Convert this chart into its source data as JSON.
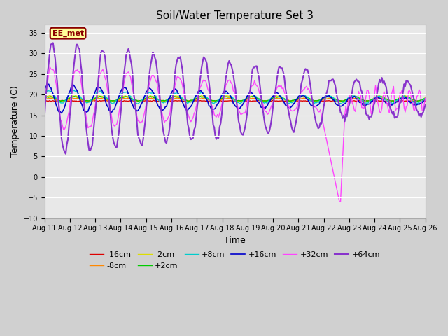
{
  "title": "Soil/Water Temperature Set 3",
  "xlabel": "Time",
  "ylabel": "Temperature (C)",
  "ylim": [
    -10,
    37
  ],
  "yticks": [
    -10,
    -5,
    0,
    5,
    10,
    15,
    20,
    25,
    30,
    35
  ],
  "xtick_labels": [
    "Aug 11",
    "Aug 12",
    "Aug 13",
    "Aug 14",
    "Aug 15",
    "Aug 16",
    "Aug 17",
    "Aug 18",
    "Aug 19",
    "Aug 20",
    "Aug 21",
    "Aug 22",
    "Aug 23",
    "Aug 24",
    "Aug 25",
    "Aug 26"
  ],
  "fig_bg": "#d0d0d0",
  "plot_bg": "#e8e8e8",
  "grid_color": "#ffffff",
  "annotation_text": "EE_met",
  "annotation_bg": "#ffff99",
  "annotation_border": "#8b0000",
  "colors": {
    "-16cm": "#dd0000",
    "-8cm": "#ff8800",
    "-2cm": "#dddd00",
    "+2cm": "#00cc00",
    "+8cm": "#00cccc",
    "+16cm": "#0000cc",
    "+32cm": "#ff44ff",
    "+64cm": "#8833cc"
  },
  "legend_order": [
    "-16cm",
    "-8cm",
    "-2cm",
    "+2cm",
    "+8cm",
    "+16cm",
    "+32cm",
    "+64cm"
  ]
}
